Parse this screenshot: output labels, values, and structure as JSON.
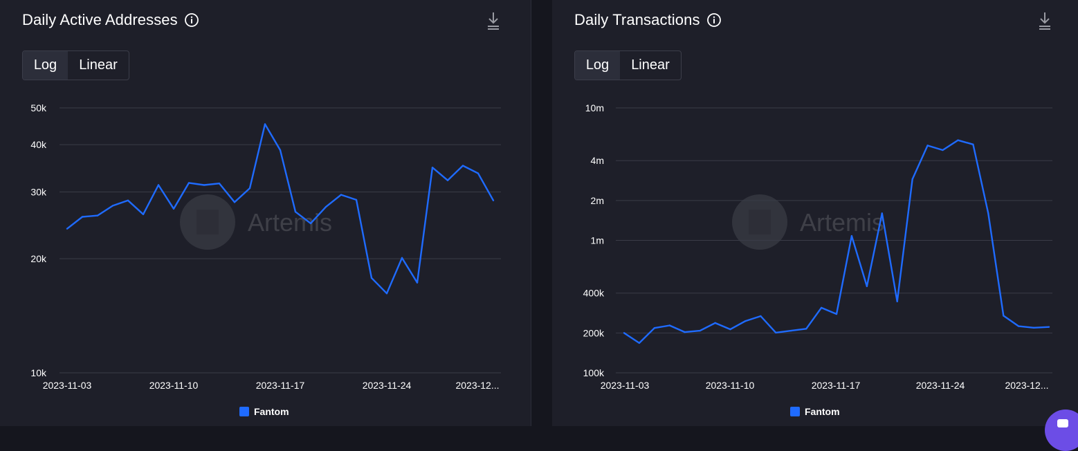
{
  "colors": {
    "series": "#1f6bff",
    "background": "#1e1f29",
    "grid": "#3a3c47",
    "text": "#ffffff",
    "watermark": "#5a5b63"
  },
  "watermark": "Artemis",
  "panels": [
    {
      "title": "Daily Active Addresses",
      "scale_toggle": [
        "Log",
        "Linear"
      ],
      "active_scale": "Log",
      "icons": [
        "info-icon",
        "download-icon"
      ]
    },
    {
      "title": "Daily Transactions",
      "scale_toggle": [
        "Log",
        "Linear"
      ],
      "active_scale": "Log",
      "icons": [
        "info-icon",
        "download-icon"
      ]
    }
  ],
  "chart_data": [
    {
      "type": "line",
      "title": "Daily Active Addresses",
      "yscale": "log",
      "ylim": [
        10000,
        50000
      ],
      "yticks": [
        10000,
        20000,
        30000,
        40000,
        50000
      ],
      "ytick_labels": [
        "10k",
        "20k",
        "30k",
        "40k",
        "50k"
      ],
      "xlim": [
        "2023-11-03",
        "2023-12-03"
      ],
      "xtick_labels": [
        "2023-11-03",
        "2023-11-10",
        "2023-11-17",
        "2023-11-24",
        "2023-12..."
      ],
      "grid": true,
      "legend": "bottom-center",
      "series": [
        {
          "name": "Fantom",
          "color": "#1f6bff",
          "x": [
            "2023-11-03",
            "2023-11-04",
            "2023-11-05",
            "2023-11-06",
            "2023-11-07",
            "2023-11-08",
            "2023-11-09",
            "2023-11-10",
            "2023-11-11",
            "2023-11-12",
            "2023-11-13",
            "2023-11-14",
            "2023-11-15",
            "2023-11-16",
            "2023-11-17",
            "2023-11-18",
            "2023-11-19",
            "2023-11-20",
            "2023-11-21",
            "2023-11-22",
            "2023-11-23",
            "2023-11-24",
            "2023-11-25",
            "2023-11-26",
            "2023-11-27",
            "2023-11-28",
            "2023-11-29",
            "2023-11-30",
            "2023-12-01"
          ],
          "values": [
            24000,
            25800,
            26000,
            27600,
            28500,
            26200,
            31300,
            27100,
            31700,
            31300,
            31600,
            28200,
            30700,
            45300,
            38700,
            26600,
            24800,
            27400,
            29500,
            28600,
            17800,
            16200,
            20100,
            17300,
            34800,
            32200,
            35200,
            33600,
            28500
          ]
        }
      ]
    },
    {
      "type": "line",
      "title": "Daily Transactions",
      "yscale": "log",
      "ylim": [
        100000,
        10000000
      ],
      "yticks": [
        100000,
        200000,
        400000,
        1000000,
        2000000,
        4000000,
        10000000
      ],
      "ytick_labels": [
        "100k",
        "200k",
        "400k",
        "1m",
        "2m",
        "4m",
        "10m"
      ],
      "xlim": [
        "2023-11-03",
        "2023-12-03"
      ],
      "xtick_labels": [
        "2023-11-03",
        "2023-11-10",
        "2023-11-17",
        "2023-11-24",
        "2023-12..."
      ],
      "grid": true,
      "legend": "bottom-center",
      "series": [
        {
          "name": "Fantom",
          "color": "#1f6bff",
          "x": [
            "2023-11-03",
            "2023-11-04",
            "2023-11-05",
            "2023-11-06",
            "2023-11-07",
            "2023-11-08",
            "2023-11-09",
            "2023-11-10",
            "2023-11-11",
            "2023-11-12",
            "2023-11-13",
            "2023-11-14",
            "2023-11-15",
            "2023-11-16",
            "2023-11-17",
            "2023-11-18",
            "2023-11-19",
            "2023-11-20",
            "2023-11-21",
            "2023-11-22",
            "2023-11-23",
            "2023-11-24",
            "2023-11-25",
            "2023-11-26",
            "2023-11-27",
            "2023-11-28",
            "2023-11-29",
            "2023-11-30",
            "2023-12-01"
          ],
          "values": [
            200000,
            168000,
            218000,
            228000,
            203000,
            208000,
            238000,
            213000,
            246000,
            268000,
            201000,
            208000,
            215000,
            310000,
            278000,
            1080000,
            450000,
            1600000,
            346000,
            2900000,
            5200000,
            4800000,
            5700000,
            5300000,
            1600000,
            270000,
            225000,
            219000,
            222000
          ]
        }
      ]
    }
  ]
}
